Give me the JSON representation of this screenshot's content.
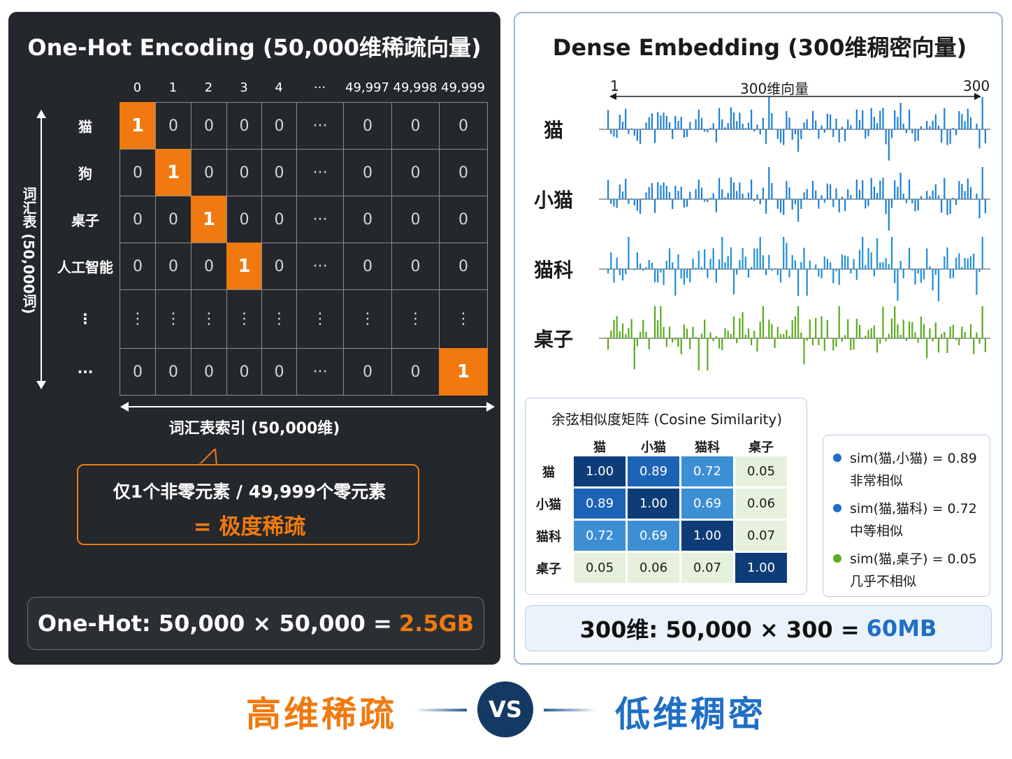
{
  "one_hot": {
    "title": "One-Hot Encoding (50,000维稀疏向量)",
    "columns": [
      "0",
      "1",
      "2",
      "3",
      "4",
      "···",
      "49,997",
      "49,998",
      "49,999"
    ],
    "rows": [
      {
        "label": "猫",
        "cells": [
          "1",
          "0",
          "0",
          "0",
          "0",
          "···",
          "0",
          "0",
          "0"
        ]
      },
      {
        "label": "狗",
        "cells": [
          "0",
          "1",
          "0",
          "0",
          "0",
          "···",
          "0",
          "0",
          "0"
        ]
      },
      {
        "label": "桌子",
        "cells": [
          "0",
          "0",
          "1",
          "0",
          "0",
          "···",
          "0",
          "0",
          "0"
        ]
      },
      {
        "label": "人工智能",
        "cells": [
          "0",
          "0",
          "0",
          "1",
          "0",
          "···",
          "0",
          "0",
          "0"
        ]
      },
      {
        "label": "⋮",
        "cells": [
          "⋮",
          "⋮",
          "⋮",
          "⋮",
          "⋮",
          "⋮",
          "⋮",
          "⋮",
          "⋮"
        ]
      },
      {
        "label": "···",
        "cells": [
          "0",
          "0",
          "0",
          "0",
          "0",
          "···",
          "0",
          "0",
          "1"
        ]
      }
    ],
    "vocab_axis_label": "词汇表 (50,000词)",
    "index_axis_label": "词汇表索引 (50,000维)",
    "callout_line1": "仅1个非零元素 / 49,999个零元素",
    "callout_line2": "= 极度稀疏",
    "formula_prefix": "One-Hot: 50,000 × 50,000 =",
    "formula_value": "2.5GB",
    "highlight_color": "#f07a10"
  },
  "dense": {
    "title": "Dense Embedding (300维稠密向量)",
    "dim_start": "1",
    "dim_label": "300维向量",
    "dim_end": "300",
    "embeddings": [
      {
        "word": "猫",
        "color": "#1f7fd6",
        "seed": 11
      },
      {
        "word": "小猫",
        "color": "#1f7fd6",
        "seed": 11
      },
      {
        "word": "猫科",
        "color": "#1f8fd8",
        "seed": 29
      },
      {
        "word": "桌子",
        "color": "#5aac1e",
        "seed": 73
      }
    ],
    "cosine": {
      "title": "余弦相似度矩阵 (Cosine Similarity)",
      "labels": [
        "猫",
        "小猫",
        "猫科",
        "桌子"
      ],
      "matrix": [
        [
          "1.00",
          "0.89",
          "0.72",
          "0.05"
        ],
        [
          "0.89",
          "1.00",
          "0.69",
          "0.06"
        ],
        [
          "0.72",
          "0.69",
          "1.00",
          "0.07"
        ],
        [
          "0.05",
          "0.06",
          "0.07",
          "1.00"
        ]
      ]
    },
    "similarities": [
      {
        "text": "sim(猫,小猫) = 0.89",
        "note": "非常相似",
        "color": "#1f6fc6"
      },
      {
        "text": "sim(猫,猫科) = 0.72",
        "note": "中等相似",
        "color": "#1f6fc6"
      },
      {
        "text": "sim(猫,桌子) = 0.05",
        "note": "几乎不相似",
        "color": "#5aac1e"
      }
    ],
    "formula_prefix": "300维: 50,000 × 300 =",
    "formula_value": "60MB",
    "highlight_color": "#1f6fc6"
  },
  "footer": {
    "left": "高维稀疏",
    "vs": "VS",
    "right": "低维稠密"
  }
}
